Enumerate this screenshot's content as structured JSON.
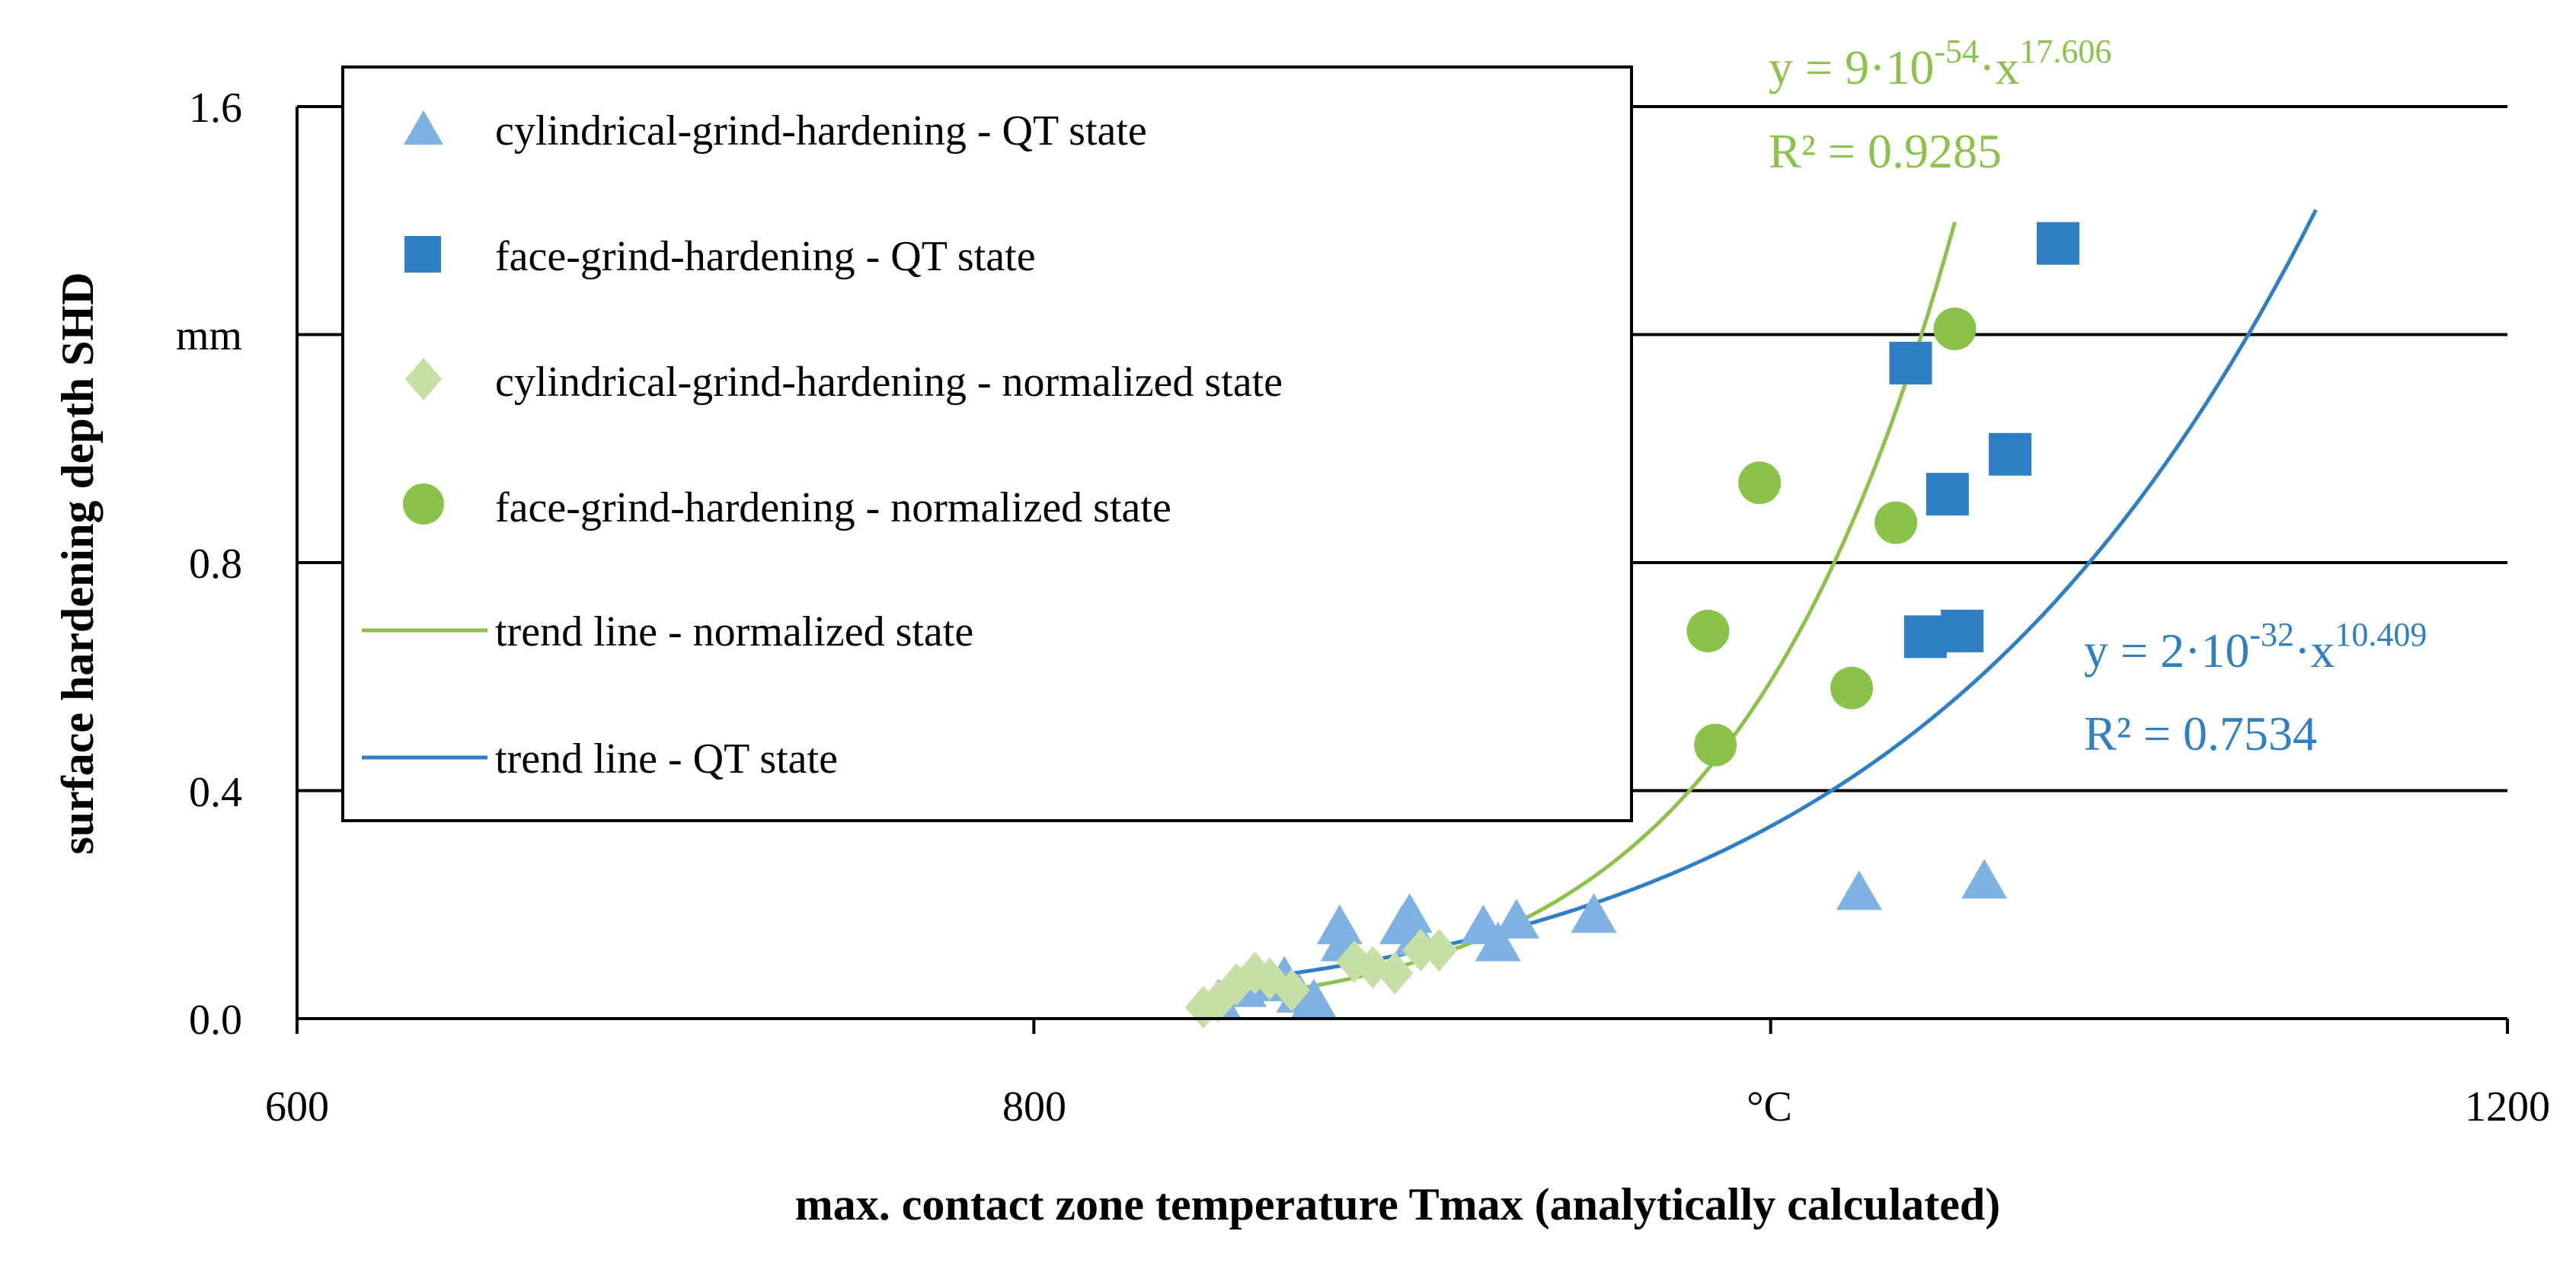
{
  "chart_data": {
    "type": "scatter",
    "title": "",
    "xlabel": "max. contact zone temperature Tmax (analytically calculated)",
    "ylabel": "surface hardening depth SHD",
    "x_unit": "°C",
    "y_unit": "mm",
    "xlim": [
      600,
      1200
    ],
    "ylim": [
      0.0,
      1.6
    ],
    "x_ticks": [
      "600",
      "800",
      "°C",
      "1200"
    ],
    "y_ticks": [
      "0.0",
      "0.4",
      "0.8",
      "mm",
      "1.6"
    ],
    "grid": "horizontal",
    "legend_position": "top-left",
    "series": [
      {
        "name": "cylindrical-grind-hardening - QT state",
        "marker": "triangle",
        "color": "#7DB2E3",
        "points": [
          [
            850,
            0.03
          ],
          [
            857,
            0.05
          ],
          [
            862,
            0.06
          ],
          [
            868,
            0.07
          ],
          [
            872,
            0.04
          ],
          [
            876,
            0.03
          ],
          [
            883,
            0.16
          ],
          [
            884,
            0.13
          ],
          [
            900,
            0.16
          ],
          [
            902,
            0.18
          ],
          [
            904,
            0.14
          ],
          [
            922,
            0.16
          ],
          [
            926,
            0.13
          ],
          [
            931,
            0.17
          ],
          [
            952,
            0.18
          ],
          [
            1024,
            0.22
          ],
          [
            1058,
            0.24
          ]
        ]
      },
      {
        "name": "face-grind-hardening - QT state",
        "marker": "square",
        "color": "#2E7FC4",
        "points": [
          [
            1038,
            1.15
          ],
          [
            1042,
            0.67
          ],
          [
            1048,
            0.92
          ],
          [
            1052,
            0.68
          ],
          [
            1065,
            0.99
          ],
          [
            1078,
            1.36
          ]
        ]
      },
      {
        "name": "cylindrical-grind-hardening - normalized state",
        "marker": "diamond",
        "color": "#C5DFA5",
        "points": [
          [
            846,
            0.02
          ],
          [
            850,
            0.03
          ],
          [
            855,
            0.06
          ],
          [
            860,
            0.08
          ],
          [
            864,
            0.07
          ],
          [
            870,
            0.05
          ],
          [
            887,
            0.1
          ],
          [
            892,
            0.09
          ],
          [
            898,
            0.08
          ],
          [
            905,
            0.12
          ],
          [
            910,
            0.12
          ]
        ]
      },
      {
        "name": "face-grind-hardening - normalized state",
        "marker": "circle",
        "color": "#8BC34A",
        "points": [
          [
            983,
            0.68
          ],
          [
            985,
            0.48
          ],
          [
            997,
            0.94
          ],
          [
            1022,
            0.58
          ],
          [
            1034,
            0.87
          ],
          [
            1050,
            1.21
          ]
        ]
      }
    ],
    "trend_lines": [
      {
        "name": "trend line - normalized state",
        "color": "#8BC34A",
        "a": 9e-54,
        "b": 17.606,
        "x_range": [
          850,
          1050
        ],
        "equation": "y = 9·10-54·x17.606",
        "eq_base": "y = 9·10",
        "eq_exp1": "-54",
        "eq_mid": "·x",
        "eq_exp2": "17.606",
        "r2": "R² = 0.9285"
      },
      {
        "name": "trend line - QT state",
        "color": "#2E7FC4",
        "a": 2e-32,
        "b": 10.409,
        "x_range": [
          850,
          1148
        ],
        "equation": "y = 2·10-32·x10.409",
        "eq_base": "y = 2·10",
        "eq_exp1": "-32",
        "eq_mid": "·x",
        "eq_exp2": "10.409",
        "r2": "R² = 0.7534"
      }
    ]
  }
}
